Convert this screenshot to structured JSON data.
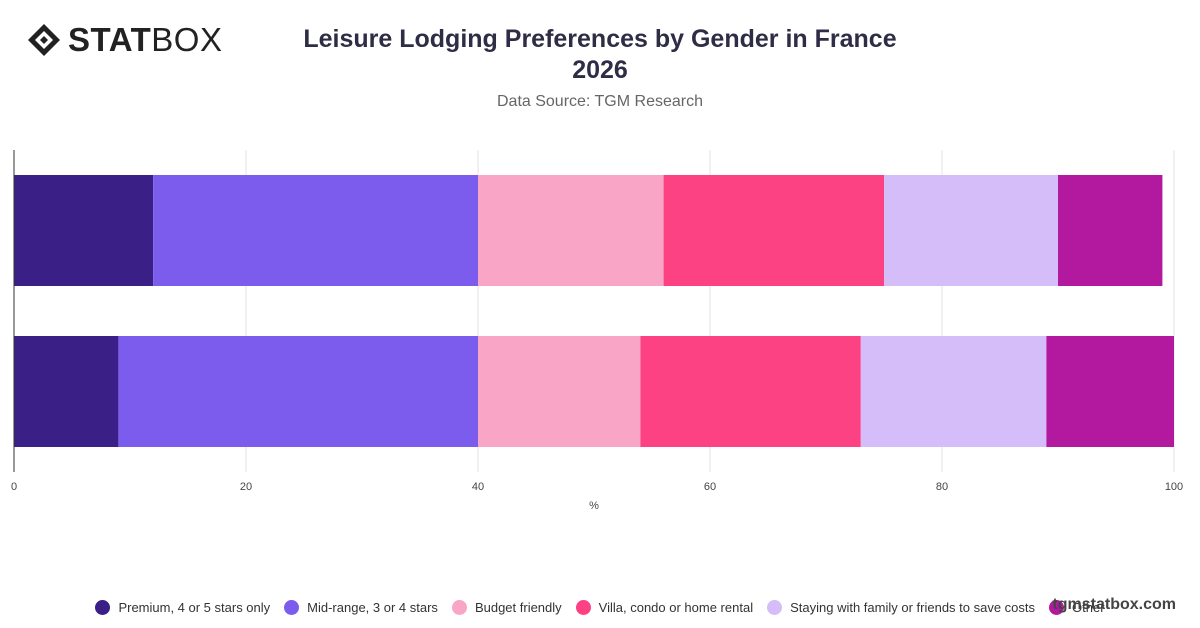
{
  "brand": {
    "logo_strong": "STAT",
    "logo_light": "BOX",
    "watermark": "tgmstatbox.com"
  },
  "header": {
    "title_line1": "Leisure Lodging Preferences by Gender in France",
    "title_line2": "2026",
    "subtitle": "Data Source: TGM Research"
  },
  "chart_data": {
    "type": "bar",
    "orientation": "horizontal",
    "stacked": true,
    "title": "Leisure Lodging Preferences by Gender in France 2026",
    "subtitle": "Data Source: TGM Research",
    "categories": [
      "",
      ""
    ],
    "series": [
      {
        "name": "Premium, 4 or 5 stars only",
        "color": "#3a1f86",
        "values": [
          12,
          9
        ]
      },
      {
        "name": "Mid-range, 3 or 4 stars",
        "color": "#7b5ced",
        "values": [
          28,
          31
        ]
      },
      {
        "name": "Budget friendly",
        "color": "#f9a5c6",
        "values": [
          16,
          14
        ]
      },
      {
        "name": "Villa, condo or home rental",
        "color": "#fc4283",
        "values": [
          19,
          19
        ]
      },
      {
        "name": "Staying with family or friends to save costs",
        "color": "#d4bdf8",
        "values": [
          15,
          16
        ]
      },
      {
        "name": "Other",
        "color": "#b2199f",
        "values": [
          9,
          11
        ]
      }
    ],
    "xlabel": "%",
    "ylabel": "",
    "xlim": [
      0,
      100
    ],
    "xticks": [
      "0",
      "20",
      "40",
      "60",
      "80",
      "100"
    ],
    "grid": true,
    "legend": "bottom"
  }
}
